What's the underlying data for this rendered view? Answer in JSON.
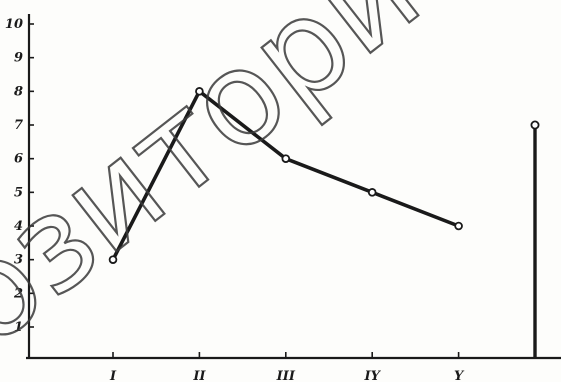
{
  "colors": {
    "ink": "#1a1a1a",
    "background": "#fdfdfb",
    "watermark_outline": "#3a3a3a"
  },
  "watermark": {
    "text": "озитори"
  },
  "chart_data": {
    "type": "line",
    "title": "",
    "xlabel": "",
    "ylabel": "",
    "categories": [
      "I",
      "II",
      "III",
      "IY",
      "Y"
    ],
    "ylim": [
      0,
      10
    ],
    "yticks": [
      "10",
      "9",
      "8",
      "7",
      "6",
      "5",
      "4",
      "3",
      "2",
      "1"
    ],
    "grid": false,
    "series": [
      {
        "values": [
          3,
          8,
          6,
          5,
          4
        ]
      }
    ],
    "isolated_bar": {
      "value": 7
    }
  }
}
